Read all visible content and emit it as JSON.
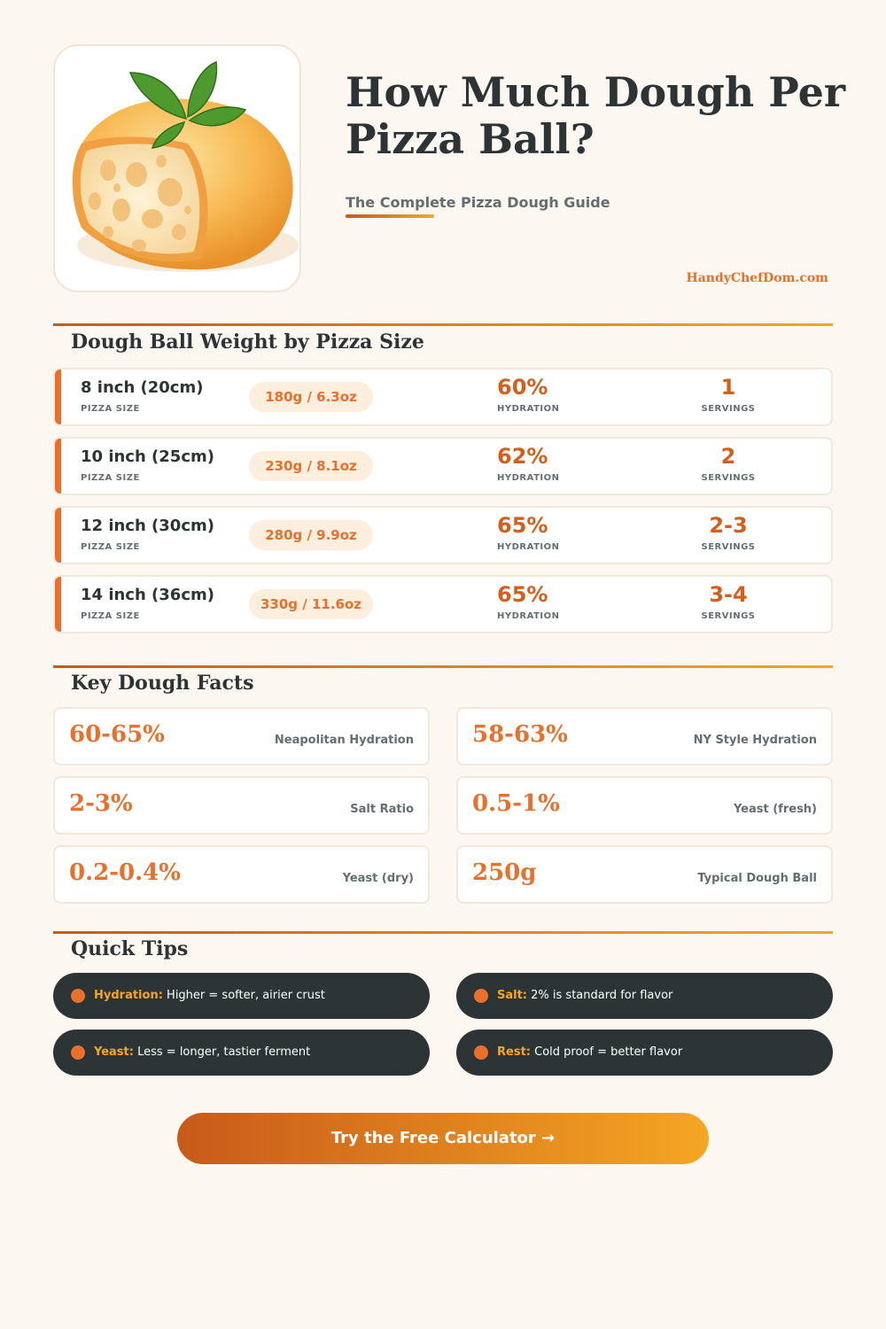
{
  "header": {
    "title": "How Much Dough Per Pizza Ball?",
    "subtitle": "The Complete Pizza Dough Guide",
    "site": "HandyChefDom.com",
    "image": "dough-ball-with-basil"
  },
  "sizes": {
    "heading": "Dough Ball Weight by Pizza Size",
    "size_label": "PIZZA SIZE",
    "hydration_label": "HYDRATION",
    "servings_label": "SERVINGS",
    "rows": [
      {
        "size": "8 inch (20cm)",
        "weight": "180g / 6.3oz",
        "hydration": "60%",
        "servings": "1"
      },
      {
        "size": "10 inch (25cm)",
        "weight": "230g / 8.1oz",
        "hydration": "62%",
        "servings": "2"
      },
      {
        "size": "12 inch (30cm)",
        "weight": "280g / 9.9oz",
        "hydration": "65%",
        "servings": "2-3"
      },
      {
        "size": "14 inch (36cm)",
        "weight": "330g / 11.6oz",
        "hydration": "65%",
        "servings": "3-4"
      }
    ]
  },
  "facts": {
    "heading": "Key Dough Facts",
    "items": [
      {
        "value": "60-65%",
        "label": "Neapolitan Hydration"
      },
      {
        "value": "58-63%",
        "label": "NY Style Hydration"
      },
      {
        "value": "2-3%",
        "label": "Salt Ratio"
      },
      {
        "value": "0.5-1%",
        "label": "Yeast (fresh)"
      },
      {
        "value": "0.2-0.4%",
        "label": "Yeast (dry)"
      },
      {
        "value": "250g",
        "label": "Typical Dough Ball"
      }
    ]
  },
  "tips": {
    "heading": "Quick Tips",
    "items": [
      {
        "key": "Hydration:",
        "text": "Higher = softer, airier crust"
      },
      {
        "key": "Salt:",
        "text": "2% is standard for flavor"
      },
      {
        "key": "Yeast:",
        "text": "Less = longer, tastier ferment"
      },
      {
        "key": "Rest:",
        "text": "Cold proof = better flavor"
      }
    ]
  },
  "cta": {
    "label": "Try the Free Calculator →"
  },
  "colors": {
    "accent": "#e8702a",
    "gradient_start": "#c85a1a",
    "gradient_end": "#f5a623",
    "dark": "#2d3436",
    "background": "#fdf7f1"
  }
}
